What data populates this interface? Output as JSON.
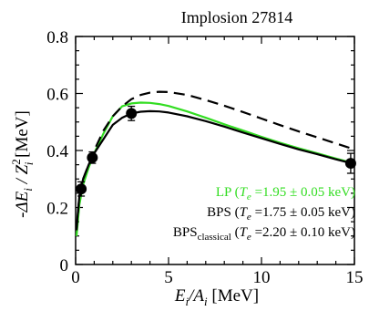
{
  "chart_data": {
    "type": "line",
    "title": "Implosion 27814",
    "xlabel": {
      "main": "E",
      "sub1": "i",
      "slash": "/A",
      "sub2": "i",
      "unit": " [MeV]"
    },
    "ylabel": {
      "minus": "-",
      "delta": "ΔE",
      "sub1": "i",
      "slash": " / Z",
      "sup": "2",
      "sub2": "i",
      "unit": " [MeV]"
    },
    "xlim": [
      0,
      15
    ],
    "ylim": [
      0,
      0.8
    ],
    "xticks": [
      0,
      5,
      10,
      15
    ],
    "xtick_labels": [
      "0",
      "5",
      "10",
      "15"
    ],
    "yticks": [
      0,
      0.2,
      0.4,
      0.6,
      0.8
    ],
    "ytick_labels": [
      "0",
      "0.2",
      "0.4",
      "0.6",
      "0.8"
    ],
    "colors": {
      "lp": "#33dd22",
      "bps": "#000000",
      "bps_classical": "#000000",
      "points": "#000000"
    },
    "series": [
      {
        "key": "lp",
        "legend": {
          "name": "LP (",
          "te": "T",
          "te_sub": "e",
          "value": " =1.95 ± 0.05 keV)"
        },
        "x": [
          0.05,
          0.2,
          0.4,
          0.7,
          1.0,
          1.5,
          2.0,
          2.5,
          3.0,
          3.5,
          4.0,
          4.5,
          5.0,
          6.0,
          7.0,
          8.0,
          9.0,
          10.0,
          11.0,
          12.0,
          13.0,
          14.0,
          14.8
        ],
        "y": [
          0.1,
          0.21,
          0.28,
          0.34,
          0.39,
          0.46,
          0.52,
          0.555,
          0.565,
          0.568,
          0.567,
          0.563,
          0.556,
          0.537,
          0.515,
          0.492,
          0.47,
          0.448,
          0.427,
          0.408,
          0.39,
          0.372,
          0.358
        ]
      },
      {
        "key": "bps",
        "legend": {
          "name": "BPS (",
          "te": "T",
          "te_sub": "e",
          "value": " =1.75 ± 0.05 keV)"
        },
        "x": [
          0.05,
          0.2,
          0.4,
          0.7,
          1.0,
          1.5,
          2.0,
          2.5,
          3.0,
          3.5,
          4.0,
          4.5,
          5.0,
          6.0,
          7.0,
          8.0,
          9.0,
          10.0,
          11.0,
          12.0,
          13.0,
          14.0,
          14.8
        ],
        "y": [
          0.13,
          0.24,
          0.3,
          0.35,
          0.39,
          0.44,
          0.49,
          0.515,
          0.53,
          0.536,
          0.538,
          0.537,
          0.533,
          0.52,
          0.503,
          0.484,
          0.463,
          0.443,
          0.423,
          0.404,
          0.387,
          0.369,
          0.356
        ]
      },
      {
        "key": "bps_classical",
        "legend": {
          "name": "BPS",
          "name_sub": "classical",
          "te_pre": " (",
          "te": "T",
          "te_sub": "e",
          "value": " =2.20 ± 0.10 keV)"
        },
        "style": "dashed",
        "x": [
          0.05,
          0.2,
          0.4,
          0.7,
          1.0,
          1.5,
          2.0,
          2.5,
          3.0,
          3.5,
          4.0,
          4.5,
          5.0,
          6.0,
          7.0,
          8.0,
          9.0,
          10.0,
          11.0,
          12.0,
          13.0,
          14.0,
          14.8
        ],
        "y": [
          0.12,
          0.24,
          0.3,
          0.35,
          0.4,
          0.47,
          0.52,
          0.555,
          0.58,
          0.595,
          0.603,
          0.606,
          0.605,
          0.595,
          0.577,
          0.557,
          0.535,
          0.512,
          0.489,
          0.467,
          0.446,
          0.425,
          0.408
        ]
      }
    ],
    "points": [
      {
        "x": 0.3,
        "y": 0.265,
        "err": 0.025
      },
      {
        "x": 0.9,
        "y": 0.375,
        "err": 0.02
      },
      {
        "x": 3.0,
        "y": 0.53,
        "err": 0.025
      },
      {
        "x": 14.8,
        "y": 0.355,
        "err": 0.035
      }
    ]
  }
}
